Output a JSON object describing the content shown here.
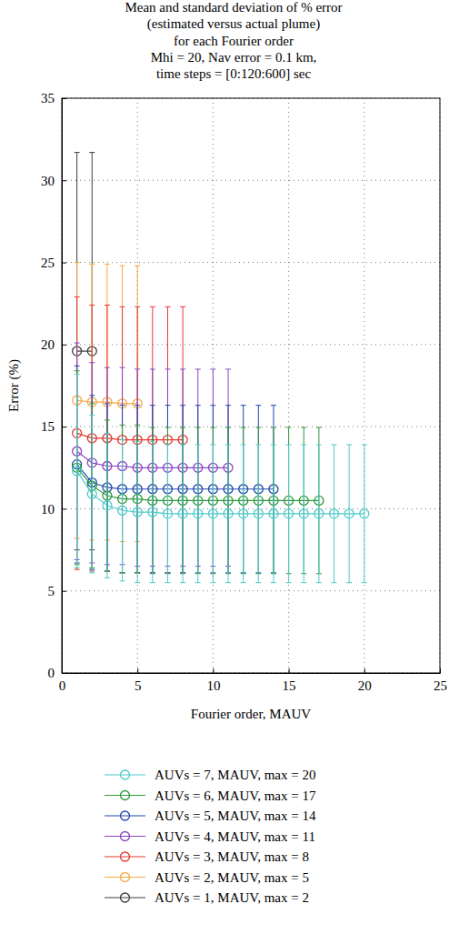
{
  "chart_data": {
    "type": "line",
    "title": [
      "Mean and standard deviation of % error",
      "(estimated versus actual plume)",
      "for each Fourier order"
    ],
    "subtitle": [
      "Mhi = 20, Nav error = 0.1 km,",
      "time steps = [0:120:600] sec"
    ],
    "x_label": "Fourier order, MAUV",
    "y_label": "Error (%)",
    "xlim": [
      0,
      25
    ],
    "xticks": [
      0,
      5,
      10,
      15,
      20,
      25
    ],
    "ylim": [
      0,
      35
    ],
    "yticks": [
      0,
      5,
      10,
      15,
      20,
      25,
      30,
      35
    ],
    "grid": true,
    "marker": "circle",
    "legend": "bottom",
    "series": [
      {
        "name": "AUVs = 7, MAUV, max = 20",
        "color": "#4fcaca",
        "x": [
          1,
          2,
          3,
          4,
          5,
          6,
          7,
          8,
          9,
          10,
          11,
          12,
          13,
          14,
          15,
          16,
          17,
          18,
          19,
          20
        ],
        "values": [
          12.3,
          10.9,
          10.2,
          9.9,
          9.8,
          9.8,
          9.7,
          9.7,
          9.7,
          9.7,
          9.7,
          9.7,
          9.7,
          9.7,
          9.7,
          9.7,
          9.7,
          9.7,
          9.7,
          9.7
        ],
        "errors": [
          5.9,
          4.8,
          4.4,
          4.3,
          4.3,
          4.3,
          4.2,
          4.2,
          4.2,
          4.2,
          4.2,
          4.2,
          4.2,
          4.2,
          4.2,
          4.2,
          4.2,
          4.2,
          4.2,
          4.2
        ]
      },
      {
        "name": "AUVs = 6, MAUV, max = 17",
        "color": "#2f9a3a",
        "x": [
          1,
          2,
          3,
          4,
          5,
          6,
          7,
          8,
          9,
          10,
          11,
          12,
          13,
          14,
          15,
          16,
          17
        ],
        "values": [
          12.5,
          11.4,
          10.8,
          10.6,
          10.6,
          10.5,
          10.5,
          10.5,
          10.5,
          10.5,
          10.5,
          10.5,
          10.5,
          10.5,
          10.5,
          10.5,
          10.5
        ],
        "errors": [
          5.9,
          5.0,
          4.6,
          4.5,
          4.5,
          4.45,
          4.45,
          4.45,
          4.45,
          4.45,
          4.45,
          4.45,
          4.45,
          4.45,
          4.45,
          4.45,
          4.45
        ]
      },
      {
        "name": "AUVs = 5, MAUV, max = 14",
        "color": "#2348b0",
        "x": [
          1,
          2,
          3,
          4,
          5,
          6,
          7,
          8,
          9,
          10,
          11,
          12,
          13,
          14
        ],
        "values": [
          12.7,
          11.6,
          11.3,
          11.2,
          11.2,
          11.2,
          11.2,
          11.2,
          11.2,
          11.2,
          11.2,
          11.2,
          11.2,
          11.2
        ],
        "errors": [
          6.0,
          5.3,
          5.1,
          5.1,
          5.1,
          5.1,
          5.1,
          5.1,
          5.1,
          5.1,
          5.1,
          5.1,
          5.1,
          5.1
        ]
      },
      {
        "name": "AUVs = 4, MAUV, max = 11",
        "color": "#8b45c4",
        "x": [
          1,
          2,
          3,
          4,
          5,
          6,
          7,
          8,
          9,
          10,
          11
        ],
        "values": [
          13.5,
          12.8,
          12.6,
          12.6,
          12.5,
          12.5,
          12.5,
          12.5,
          12.5,
          12.5,
          12.5
        ],
        "errors": [
          6.6,
          6.1,
          6.0,
          6.0,
          6.0,
          6.0,
          6.0,
          6.0,
          6.0,
          6.0,
          6.0
        ]
      },
      {
        "name": "AUVs = 3, MAUV, max = 8",
        "color": "#e5392f",
        "x": [
          1,
          2,
          3,
          4,
          5,
          6,
          7,
          8
        ],
        "values": [
          14.6,
          14.3,
          14.3,
          14.2,
          14.2,
          14.2,
          14.2,
          14.2
        ],
        "errors": [
          8.3,
          8.1,
          8.1,
          8.1,
          8.1,
          8.1,
          8.1,
          8.1
        ]
      },
      {
        "name": "AUVs = 2, MAUV, max = 5",
        "color": "#f5a844",
        "x": [
          1,
          2,
          3,
          4,
          5
        ],
        "values": [
          16.6,
          16.5,
          16.5,
          16.4,
          16.4
        ],
        "errors": [
          8.4,
          8.4,
          8.4,
          8.4,
          8.4
        ]
      },
      {
        "name": "AUVs = 1, MAUV, max = 2",
        "color": "#3c3c3c",
        "x": [
          1,
          2
        ],
        "values": [
          19.6,
          19.6
        ],
        "errors": [
          12.1,
          12.1
        ]
      }
    ]
  }
}
